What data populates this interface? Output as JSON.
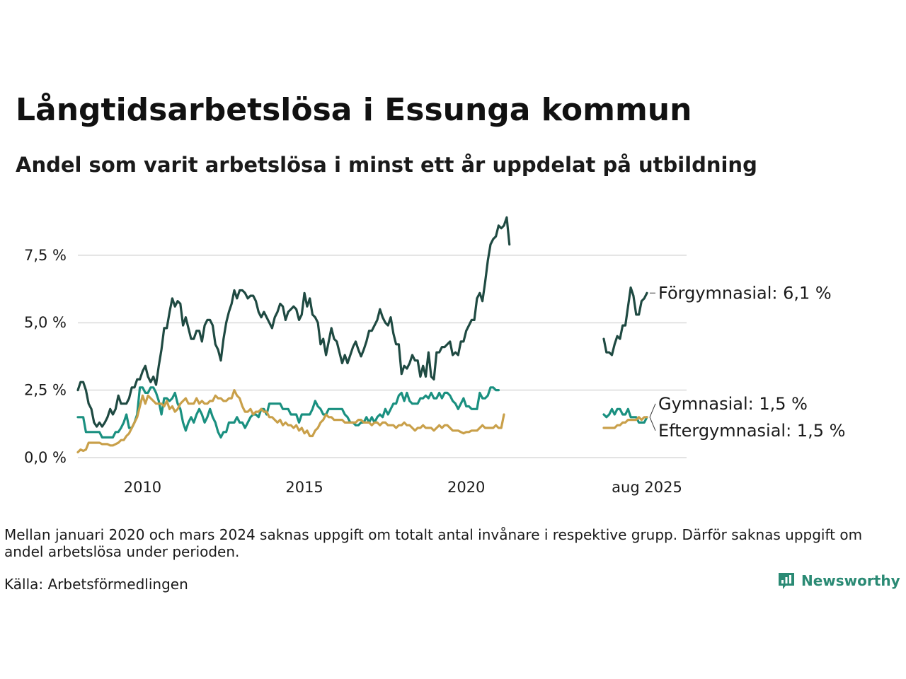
{
  "brand": {
    "name": "Newsworthy",
    "logo_icon": "newsworthy-logo-icon",
    "color": "#2a8a74"
  },
  "note": "Mellan januari 2020 och mars 2024 saknas uppgift om totalt antal invånare i respektive grupp. Därför saknas uppgift om andel arbetslösa under perioden.",
  "source": "Källa: Arbetsförmedlingen",
  "chart_data": {
    "type": "line",
    "title": "Långtidsarbetslösa i Essunga kommun",
    "subtitle": "Andel som varit arbetslösa i minst ett år uppdelat på utbildning",
    "xlabel": "",
    "ylabel": "",
    "x_range": [
      "2008-01",
      "2025-08"
    ],
    "ylim": [
      0,
      9.2
    ],
    "y_ticks": [
      {
        "value": 0,
        "label": "0,0 %"
      },
      {
        "value": 2.5,
        "label": "2,5 %"
      },
      {
        "value": 5,
        "label": "5,0 %"
      },
      {
        "value": 7.5,
        "label": "7,5 %"
      }
    ],
    "x_ticks": [
      {
        "value": "2010-01",
        "label": "2010"
      },
      {
        "value": "2015-01",
        "label": "2015"
      },
      {
        "value": "2020-01",
        "label": "2020"
      },
      {
        "value": "2025-08",
        "label": "aug 2025"
      }
    ],
    "grid": "horizontal",
    "legend": "direct labels at right end of lines",
    "gap": [
      "2021-01",
      "2024-04"
    ],
    "series": [
      {
        "name": "Förgymnasial",
        "end_label": "Förgymnasial: 6,1 %",
        "color": "#1f4a42",
        "segments": [
          {
            "start": "2008-01",
            "values": [
              2.5,
              2.8,
              2.8,
              2.5,
              2.0,
              1.8,
              1.3,
              1.15,
              1.3,
              1.15,
              1.3,
              1.5,
              1.8,
              1.6,
              1.8,
              2.3,
              2.0,
              2.0,
              2.0,
              2.2,
              2.6,
              2.6,
              2.9,
              2.9,
              3.2,
              3.4,
              3.0,
              2.8,
              3.0,
              2.7,
              3.4,
              4.0,
              4.8,
              4.8,
              5.4,
              5.9,
              5.6,
              5.8,
              5.7,
              4.9,
              5.2,
              4.8,
              4.4,
              4.4,
              4.7,
              4.7,
              4.3,
              4.9,
              5.1,
              5.1,
              4.9,
              4.2,
              4.0,
              3.6,
              4.4,
              5.0,
              5.4,
              5.7,
              6.2,
              5.9,
              6.2,
              6.2,
              6.1,
              5.9,
              6.0,
              6.0,
              5.8,
              5.4,
              5.2,
              5.4,
              5.2,
              5.0,
              4.8,
              5.2,
              5.4,
              5.7,
              5.6,
              5.1,
              5.4,
              5.5,
              5.6,
              5.5,
              5.1,
              5.3,
              6.1,
              5.6,
              5.9,
              5.3,
              5.2,
              5.0,
              4.2,
              4.4,
              3.8,
              4.3,
              4.8,
              4.4,
              4.3,
              3.9,
              3.5,
              3.8,
              3.5,
              3.8,
              4.1,
              4.3,
              4.0,
              3.75,
              4.0,
              4.3,
              4.7,
              4.7,
              4.9,
              5.1,
              5.5,
              5.2,
              5.0,
              4.9,
              5.2,
              4.6,
              4.2,
              4.2,
              3.1,
              3.4,
              3.3,
              3.5,
              3.8,
              3.6,
              3.6,
              3.0,
              3.4,
              3.0,
              3.9,
              3.0,
              2.9,
              3.9,
              3.9,
              4.1,
              4.1,
              4.2,
              4.3,
              3.8,
              3.9,
              3.8,
              4.3,
              4.3,
              4.7,
              4.9,
              5.1,
              5.1,
              5.9,
              6.1,
              5.8,
              6.5,
              7.3,
              7.9,
              8.1,
              8.2,
              8.6,
              8.5,
              8.6,
              8.9,
              7.9
            ]
          },
          {
            "start": "2024-04",
            "values": [
              4.4,
              3.9,
              3.9,
              3.8,
              4.2,
              4.5,
              4.4,
              4.9,
              4.9,
              5.6,
              6.3,
              6.0,
              5.3,
              5.3,
              5.8,
              5.9,
              6.1
            ]
          }
        ]
      },
      {
        "name": "Gymnasial",
        "end_label": "Gymnasial: 1,5 %",
        "color": "#1a9080",
        "segments": [
          {
            "start": "2008-01",
            "values": [
              1.5,
              1.5,
              1.5,
              0.95,
              0.95,
              0.95,
              0.95,
              0.95,
              0.95,
              0.75,
              0.75,
              0.75,
              0.75,
              0.75,
              0.95,
              0.95,
              1.1,
              1.3,
              1.6,
              1.1,
              1.1,
              1.3,
              1.6,
              2.6,
              2.6,
              2.4,
              2.4,
              2.6,
              2.6,
              2.4,
              2.1,
              1.6,
              2.2,
              2.2,
              2.1,
              2.2,
              2.4,
              2.0,
              1.8,
              1.3,
              1.0,
              1.3,
              1.5,
              1.3,
              1.6,
              1.8,
              1.6,
              1.3,
              1.5,
              1.8,
              1.5,
              1.3,
              0.95,
              0.75,
              0.95,
              0.95,
              1.3,
              1.3,
              1.3,
              1.5,
              1.3,
              1.3,
              1.1,
              1.3,
              1.5,
              1.6,
              1.6,
              1.5,
              1.8,
              1.8,
              1.6,
              2.0,
              2.0,
              2.0,
              2.0,
              2.0,
              1.8,
              1.8,
              1.8,
              1.6,
              1.6,
              1.6,
              1.3,
              1.6,
              1.6,
              1.6,
              1.6,
              1.8,
              2.1,
              1.9,
              1.8,
              1.6,
              1.6,
              1.8,
              1.8,
              1.8,
              1.8,
              1.8,
              1.8,
              1.6,
              1.5,
              1.3,
              1.3,
              1.2,
              1.2,
              1.3,
              1.3,
              1.5,
              1.3,
              1.5,
              1.3,
              1.5,
              1.6,
              1.5,
              1.8,
              1.6,
              1.8,
              2.0,
              2.0,
              2.3,
              2.4,
              2.1,
              2.4,
              2.1,
              2.0,
              2.0,
              2.0,
              2.2,
              2.2,
              2.3,
              2.2,
              2.4,
              2.2,
              2.2,
              2.4,
              2.2,
              2.4,
              2.4,
              2.3,
              2.1,
              2.0,
              1.8,
              2.0,
              2.2,
              1.9,
              1.9,
              1.8,
              1.8,
              1.8,
              2.4,
              2.2,
              2.2,
              2.3,
              2.6,
              2.6,
              2.5,
              2.5
            ]
          },
          {
            "start": "2024-04",
            "values": [
              1.6,
              1.5,
              1.6,
              1.8,
              1.6,
              1.8,
              1.8,
              1.6,
              1.6,
              1.8,
              1.5,
              1.5,
              1.5,
              1.3,
              1.3,
              1.3,
              1.5
            ]
          }
        ]
      },
      {
        "name": "Eftergymnasial",
        "end_label": "Eftergymnasial: 1,5 %",
        "color": "#c9a04a",
        "segments": [
          {
            "start": "2008-01",
            "values": [
              0.2,
              0.3,
              0.25,
              0.3,
              0.55,
              0.55,
              0.55,
              0.55,
              0.55,
              0.5,
              0.5,
              0.5,
              0.45,
              0.45,
              0.5,
              0.55,
              0.65,
              0.65,
              0.8,
              0.9,
              1.1,
              1.3,
              1.5,
              1.9,
              2.3,
              2.0,
              2.3,
              2.2,
              2.1,
              2.0,
              2.0,
              2.0,
              1.9,
              2.1,
              1.8,
              1.9,
              1.7,
              1.8,
              2.0,
              2.1,
              2.2,
              2.0,
              2.0,
              2.0,
              2.2,
              2.0,
              2.1,
              2.0,
              2.0,
              2.1,
              2.1,
              2.3,
              2.2,
              2.2,
              2.1,
              2.1,
              2.2,
              2.2,
              2.5,
              2.3,
              2.2,
              1.9,
              1.7,
              1.7,
              1.8,
              1.6,
              1.7,
              1.7,
              1.8,
              1.7,
              1.7,
              1.5,
              1.5,
              1.4,
              1.3,
              1.4,
              1.2,
              1.3,
              1.2,
              1.2,
              1.1,
              1.2,
              1.0,
              1.1,
              0.9,
              1.0,
              0.8,
              0.8,
              1.0,
              1.1,
              1.3,
              1.4,
              1.6,
              1.5,
              1.5,
              1.4,
              1.4,
              1.4,
              1.4,
              1.3,
              1.3,
              1.3,
              1.3,
              1.3,
              1.4,
              1.4,
              1.3,
              1.3,
              1.3,
              1.2,
              1.3,
              1.3,
              1.2,
              1.3,
              1.3,
              1.2,
              1.2,
              1.2,
              1.1,
              1.2,
              1.2,
              1.3,
              1.2,
              1.2,
              1.1,
              1.0,
              1.1,
              1.1,
              1.2,
              1.1,
              1.1,
              1.1,
              1.0,
              1.1,
              1.2,
              1.1,
              1.2,
              1.2,
              1.1,
              1.0,
              1.0,
              1.0,
              0.95,
              0.9,
              0.95,
              0.95,
              1.0,
              1.0,
              1.0,
              1.1,
              1.2,
              1.1,
              1.1,
              1.1,
              1.1,
              1.2,
              1.1,
              1.1,
              1.6
            ]
          },
          {
            "start": "2024-04",
            "values": [
              1.1,
              1.1,
              1.1,
              1.1,
              1.1,
              1.2,
              1.2,
              1.3,
              1.3,
              1.4,
              1.4,
              1.4,
              1.4,
              1.5,
              1.4,
              1.5,
              1.5
            ]
          }
        ]
      }
    ]
  }
}
